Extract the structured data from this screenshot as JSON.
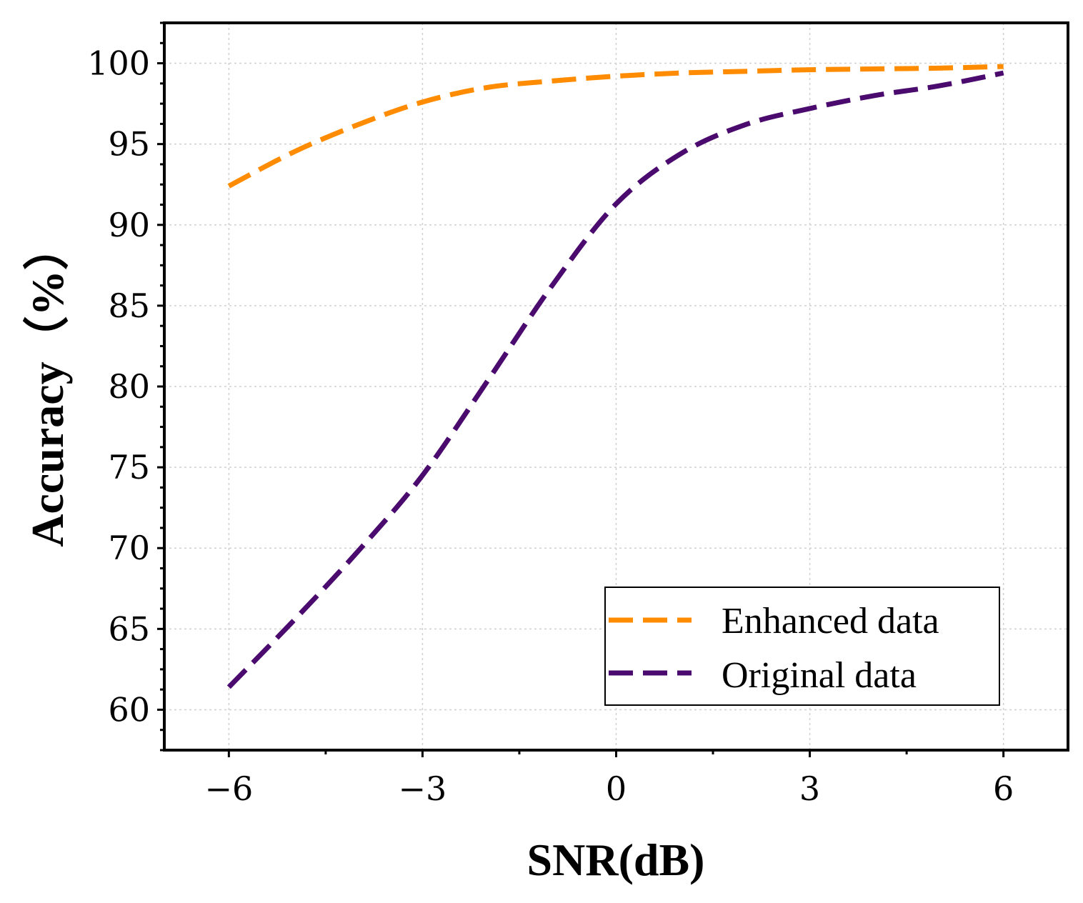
{
  "chart_data": {
    "type": "line",
    "title": "",
    "xlabel": "SNR(dB)",
    "ylabel": "Accuracy（%）",
    "xlim": [
      -7,
      7
    ],
    "ylim": [
      57.5,
      102.5
    ],
    "x_ticks": [
      -6,
      -3,
      0,
      3,
      6
    ],
    "x_tick_labels": [
      "−6",
      "−3",
      "0",
      "3",
      "6"
    ],
    "y_ticks": [
      60,
      65,
      70,
      75,
      80,
      85,
      90,
      95,
      100
    ],
    "y_tick_labels": [
      "60",
      "65",
      "70",
      "75",
      "80",
      "85",
      "90",
      "95",
      "100"
    ],
    "grid": true,
    "legend_position": "bottom-right",
    "series": [
      {
        "name": "Enhanced data",
        "color": "#ff8c00",
        "x": [
          -6,
          -5,
          -4,
          -3,
          -2,
          -1,
          0,
          1,
          2,
          3,
          4,
          5,
          6
        ],
        "values": [
          92.4,
          94.5,
          96.2,
          97.6,
          98.5,
          98.9,
          99.2,
          99.4,
          99.5,
          99.6,
          99.65,
          99.7,
          99.8
        ]
      },
      {
        "name": "Original data",
        "color": "#4b0a6e",
        "x": [
          -6,
          -5,
          -4,
          -3,
          -2,
          -1,
          0,
          1,
          2,
          3,
          4,
          5,
          6
        ],
        "values": [
          61.4,
          65.5,
          69.8,
          74.5,
          80.3,
          86.2,
          91.3,
          94.4,
          96.2,
          97.2,
          98.0,
          98.6,
          99.4
        ]
      }
    ]
  }
}
